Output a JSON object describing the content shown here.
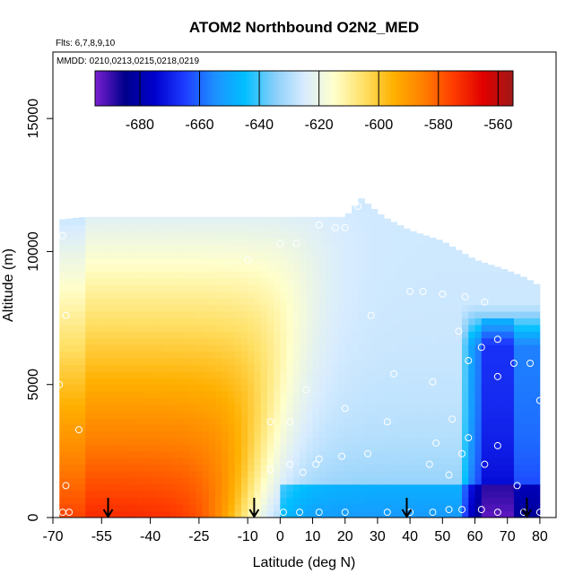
{
  "chart_data": {
    "type": "heatmap",
    "title": "ATOM2 Northbound O2N2_MED",
    "annotations": {
      "flights": "Flts: 6,7,8,9,10",
      "dates": "MMDD: 0210,0213,0215,0218,0219"
    },
    "xlabel": "Latitude (deg N)",
    "ylabel": "Altitude (m)",
    "xlim": [
      -70,
      85
    ],
    "ylim": [
      0,
      17500
    ],
    "x_ticks": [
      -70,
      -55,
      -40,
      -25,
      -10,
      0,
      10,
      20,
      30,
      40,
      50,
      60,
      70,
      80
    ],
    "x_tick_labels": [
      "-70",
      "-55",
      "-40",
      "-25",
      "-10",
      "0",
      "10",
      "20",
      "30",
      "40",
      "50",
      "60",
      "70",
      "80"
    ],
    "y_ticks": [
      0,
      5000,
      10000,
      15000
    ],
    "y_tick_labels": [
      "0",
      "5000",
      "10000",
      "15000"
    ],
    "colorbar": {
      "range": [
        -695,
        -555
      ],
      "ticks": [
        -680,
        -660,
        -640,
        -620,
        -600,
        -580,
        -560
      ],
      "tick_labels": [
        "-680",
        "-660",
        "-640",
        "-620",
        "-600",
        "-580",
        "-560"
      ],
      "colors": [
        "#7a1fd1",
        "#00008b",
        "#0000cd",
        "#1e3cff",
        "#1e90ff",
        "#00bfff",
        "#87cefa",
        "#d8ecff",
        "#ffffcc",
        "#ffe066",
        "#ffb000",
        "#ff7f00",
        "#ff3c00",
        "#e00000",
        "#a01818"
      ]
    },
    "field": {
      "x_range": [
        -68,
        80
      ],
      "altitude_envelope": [
        {
          "x": -68,
          "top": 11200
        },
        {
          "x": -60,
          "top": 11300
        },
        {
          "x": -40,
          "top": 11300
        },
        {
          "x": -20,
          "top": 11300
        },
        {
          "x": 0,
          "top": 11300
        },
        {
          "x": 20,
          "top": 11300
        },
        {
          "x": 25,
          "top": 12000
        },
        {
          "x": 32,
          "top": 11300
        },
        {
          "x": 40,
          "top": 10800
        },
        {
          "x": 50,
          "top": 10400
        },
        {
          "x": 60,
          "top": 9700
        },
        {
          "x": 70,
          "top": 9300
        },
        {
          "x": 76,
          "top": 9000
        },
        {
          "x": 80,
          "top": 8700
        }
      ]
    },
    "sample_points": [
      {
        "x": -67,
        "y": 10600
      },
      {
        "x": -66,
        "y": 7600
      },
      {
        "x": -68,
        "y": 5000
      },
      {
        "x": -62,
        "y": 3300
      },
      {
        "x": -66,
        "y": 1200
      },
      {
        "x": -67,
        "y": 200
      },
      {
        "x": -65,
        "y": 200
      },
      {
        "x": -10,
        "y": 9700
      },
      {
        "x": 0,
        "y": 10300
      },
      {
        "x": 5,
        "y": 10300
      },
      {
        "x": 12,
        "y": 11000
      },
      {
        "x": 17,
        "y": 10900
      },
      {
        "x": 20,
        "y": 10900
      },
      {
        "x": 24,
        "y": 11700
      },
      {
        "x": 28,
        "y": 7600
      },
      {
        "x": 40,
        "y": 8500
      },
      {
        "x": 44,
        "y": 8500
      },
      {
        "x": 50,
        "y": 8400
      },
      {
        "x": 57,
        "y": 8300
      },
      {
        "x": 63,
        "y": 8100
      },
      {
        "x": 55,
        "y": 7000
      },
      {
        "x": 67,
        "y": 6700
      },
      {
        "x": 62,
        "y": 6400
      },
      {
        "x": 58,
        "y": 5900
      },
      {
        "x": 72,
        "y": 5800
      },
      {
        "x": 77,
        "y": 5800
      },
      {
        "x": 35,
        "y": 5400
      },
      {
        "x": 47,
        "y": 5100
      },
      {
        "x": 67,
        "y": 5300
      },
      {
        "x": 8,
        "y": 4800
      },
      {
        "x": 20,
        "y": 4100
      },
      {
        "x": 80,
        "y": 4400
      },
      {
        "x": -3,
        "y": 3600
      },
      {
        "x": 3,
        "y": 3600
      },
      {
        "x": 33,
        "y": 3600
      },
      {
        "x": 53,
        "y": 3700
      },
      {
        "x": 58,
        "y": 3000
      },
      {
        "x": 48,
        "y": 2800
      },
      {
        "x": 67,
        "y": 2700
      },
      {
        "x": 12,
        "y": 2200
      },
      {
        "x": 19,
        "y": 2300
      },
      {
        "x": 27,
        "y": 2400
      },
      {
        "x": 56,
        "y": 2400
      },
      {
        "x": 63,
        "y": 2000
      },
      {
        "x": 11,
        "y": 2000
      },
      {
        "x": 3,
        "y": 2000
      },
      {
        "x": -3,
        "y": 1800
      },
      {
        "x": 7,
        "y": 1700
      },
      {
        "x": 46,
        "y": 2000
      },
      {
        "x": 52,
        "y": 1600
      },
      {
        "x": 73,
        "y": 1200
      },
      {
        "x": 1,
        "y": 200
      },
      {
        "x": 6,
        "y": 200
      },
      {
        "x": 12,
        "y": 200
      },
      {
        "x": 20,
        "y": 200
      },
      {
        "x": 33,
        "y": 200
      },
      {
        "x": 40,
        "y": 200
      },
      {
        "x": 47,
        "y": 200
      },
      {
        "x": 52,
        "y": 300
      },
      {
        "x": 56,
        "y": 300
      },
      {
        "x": 62,
        "y": 300
      },
      {
        "x": 67,
        "y": 200
      },
      {
        "x": 75,
        "y": 200
      },
      {
        "x": 80,
        "y": 200
      }
    ],
    "arrows": [
      {
        "x": -53,
        "y_top": 600,
        "y_bottom": 0
      },
      {
        "x": -8,
        "y_top": 600,
        "y_bottom": 0
      },
      {
        "x": 39,
        "y_top": 600,
        "y_bottom": 0
      },
      {
        "x": 76,
        "y_top": 600,
        "y_bottom": 0
      }
    ],
    "legend": "top (horizontal colorbar)",
    "grid": false
  }
}
